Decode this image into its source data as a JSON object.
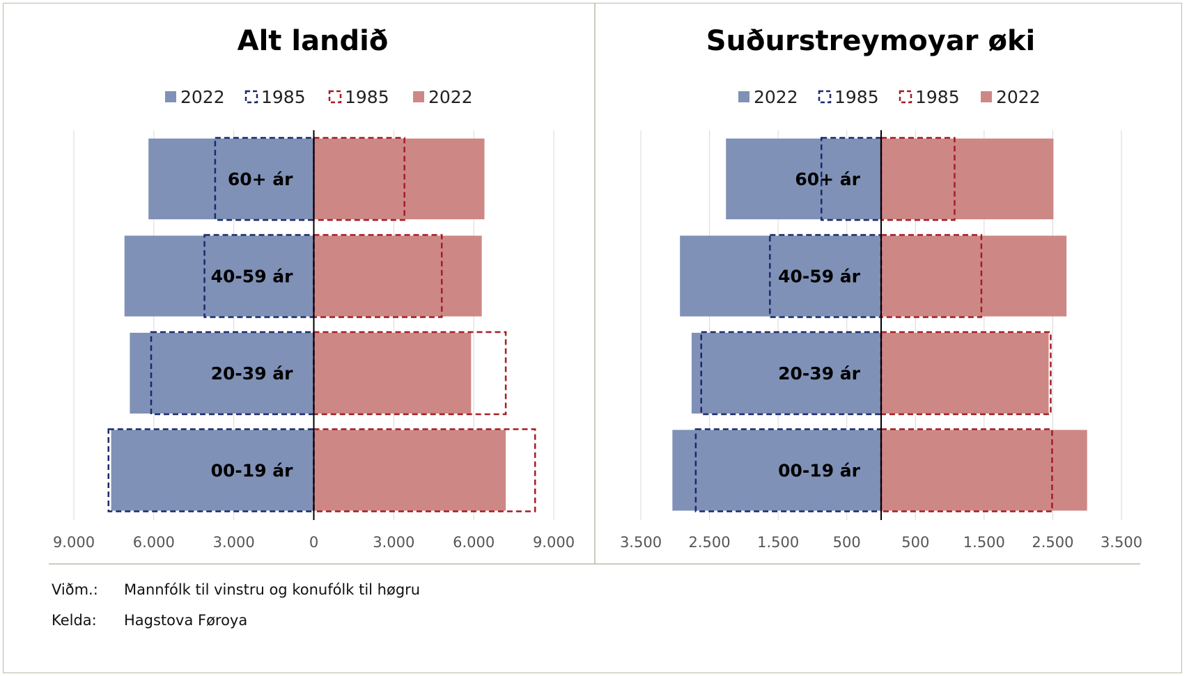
{
  "colors": {
    "male_2022": "#7f91b6",
    "male_1985": "#1a2a6c",
    "female_1985": "#a51c24",
    "female_2022": "#cd8886",
    "grid": "#d8d8d8",
    "axis": "#000000",
    "divider": "#b8bca8"
  },
  "footnote": {
    "note_label": "Viðm.:",
    "note_text": "Mannfólk til vinstru og konufólk til høgru",
    "source_label": "Kelda:",
    "source_text": "Hagstova Føroya"
  },
  "chart_data": [
    {
      "type": "bar",
      "orientation": "horizontal-pyramid",
      "title": "Alt landið",
      "legend": [
        "2022",
        "1985",
        "1985",
        "2022"
      ],
      "categories": [
        "60+ ár",
        "40-59 ár",
        "20-39 ár",
        "00-19 ár"
      ],
      "xlim": [
        -9000,
        9000
      ],
      "x_ticks": [
        -9000,
        -6000,
        -3000,
        0,
        3000,
        6000,
        9000
      ],
      "x_tick_labels": [
        "9.000",
        "6.000",
        "3.000",
        "0",
        "3.000",
        "6.000",
        "9.000"
      ],
      "series": [
        {
          "name": "2022",
          "side": "left",
          "style": "filled",
          "values": [
            6200,
            7100,
            6900,
            7600
          ]
        },
        {
          "name": "1985",
          "side": "left",
          "style": "dashed",
          "values": [
            3700,
            4100,
            6100,
            7700
          ]
        },
        {
          "name": "1985",
          "side": "right",
          "style": "dashed",
          "values": [
            3400,
            4800,
            7200,
            8300
          ]
        },
        {
          "name": "2022",
          "side": "right",
          "style": "filled",
          "values": [
            6400,
            6300,
            5900,
            7200
          ]
        }
      ]
    },
    {
      "type": "bar",
      "orientation": "horizontal-pyramid",
      "title": "Suðurstreymoyar øki",
      "legend": [
        "2022",
        "1985",
        "1985",
        "2022"
      ],
      "categories": [
        "60+ ár",
        "40-59 ár",
        "20-39 ár",
        "00-19 ár"
      ],
      "xlim": [
        -3500,
        3500
      ],
      "x_ticks": [
        -3500,
        -2500,
        -1500,
        -500,
        500,
        1500,
        2500,
        3500
      ],
      "x_tick_labels": [
        "3.500",
        "2.500",
        "1.500",
        "500",
        "500",
        "1.500",
        "2.500",
        "3.500"
      ],
      "series": [
        {
          "name": "2022",
          "side": "left",
          "style": "filled",
          "values": [
            2260,
            2930,
            2760,
            3040
          ]
        },
        {
          "name": "1985",
          "side": "left",
          "style": "dashed",
          "values": [
            870,
            1620,
            2620,
            2700
          ]
        },
        {
          "name": "1985",
          "side": "right",
          "style": "dashed",
          "values": [
            1070,
            1460,
            2470,
            2490
          ]
        },
        {
          "name": "2022",
          "side": "right",
          "style": "filled",
          "values": [
            2510,
            2700,
            2440,
            3000
          ]
        }
      ]
    }
  ]
}
